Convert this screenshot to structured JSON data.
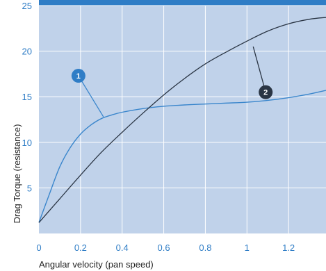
{
  "chart_data": {
    "type": "line",
    "title": "",
    "xlabel": "Angular velocity (pan speed)",
    "ylabel": "Drag Torque (resistance)",
    "xlim": [
      0,
      1.38
    ],
    "ylim": [
      0,
      25
    ],
    "x_ticks": [
      0,
      0.2,
      0.4,
      0.6,
      0.8,
      1,
      1.2
    ],
    "x_tick_labels": [
      "0",
      "0.2",
      "0.4",
      "0.6",
      "0.8",
      "1",
      "1.2"
    ],
    "y_ticks": [
      5,
      10,
      15,
      20,
      25
    ],
    "y_tick_labels": [
      "5",
      "10",
      "15",
      "20",
      "25"
    ],
    "grid": true,
    "legend": "none",
    "colors": {
      "plot_background": "#c0d2ea",
      "grid": "#ffffff",
      "top_band": "#2f7dc6",
      "axis_text": "#2f7dc6",
      "marker_1": "#2f7dc6",
      "marker_2": "#2a3544"
    },
    "series": [
      {
        "marker_label": "1",
        "color": "#3a86cc",
        "x": [
          0,
          0.05,
          0.1,
          0.15,
          0.2,
          0.25,
          0.3,
          0.35,
          0.4,
          0.5,
          0.6,
          0.7,
          0.8,
          0.9,
          1.0,
          1.1,
          1.2,
          1.3,
          1.38
        ],
        "y": [
          1.2,
          4.3,
          7.3,
          9.4,
          10.9,
          11.9,
          12.6,
          13.0,
          13.3,
          13.7,
          13.95,
          14.1,
          14.2,
          14.3,
          14.4,
          14.6,
          14.9,
          15.3,
          15.7
        ]
      },
      {
        "marker_label": "2",
        "color": "#2a3544",
        "x": [
          0,
          0.1,
          0.2,
          0.3,
          0.4,
          0.5,
          0.6,
          0.7,
          0.8,
          0.9,
          1.0,
          1.1,
          1.2,
          1.3,
          1.38
        ],
        "y": [
          1.2,
          3.8,
          6.4,
          8.9,
          11.1,
          13.2,
          15.2,
          17.0,
          18.6,
          19.9,
          21.1,
          22.2,
          23.0,
          23.5,
          23.7
        ]
      }
    ],
    "callouts": [
      {
        "label": "1",
        "series": 0,
        "point_x": 0.31,
        "point_y": 12.8,
        "marker_x": 0.19,
        "marker_y": 17.3
      },
      {
        "label": "2",
        "series": 1,
        "point_x": 1.03,
        "point_y": 20.5,
        "marker_x": 1.09,
        "marker_y": 15.5
      }
    ]
  }
}
